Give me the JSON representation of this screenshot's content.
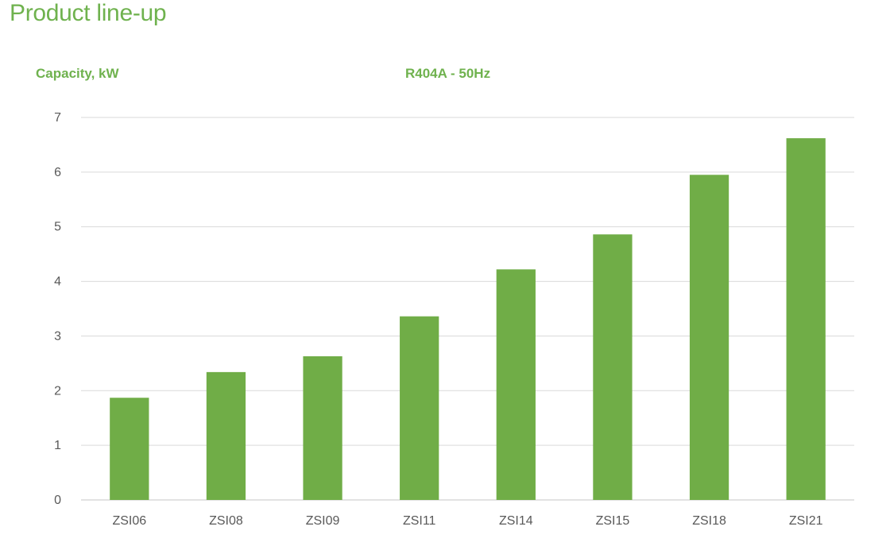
{
  "page": {
    "title": "Product line-up"
  },
  "chart_data": {
    "type": "bar",
    "title": "R404A - 50Hz",
    "ylabel": "Capacity, kW",
    "xlabel": "",
    "categories": [
      "ZSI06",
      "ZSI08",
      "ZSI09",
      "ZSI11",
      "ZSI14",
      "ZSI15",
      "ZSI18",
      "ZSI21"
    ],
    "series": [
      {
        "values": [
          1.87,
          2.34,
          2.63,
          3.36,
          4.22,
          4.86,
          5.95,
          6.62
        ]
      }
    ],
    "ylim": [
      0,
      7
    ],
    "yticks": [
      "0",
      "1",
      "2",
      "3",
      "4",
      "5",
      "6",
      "7"
    ],
    "grid": true,
    "legend": "none",
    "colors": {
      "bar": "#70ad47",
      "title": "#6fb24e",
      "grid": "#d9d9d9",
      "tick": "#595959"
    }
  }
}
